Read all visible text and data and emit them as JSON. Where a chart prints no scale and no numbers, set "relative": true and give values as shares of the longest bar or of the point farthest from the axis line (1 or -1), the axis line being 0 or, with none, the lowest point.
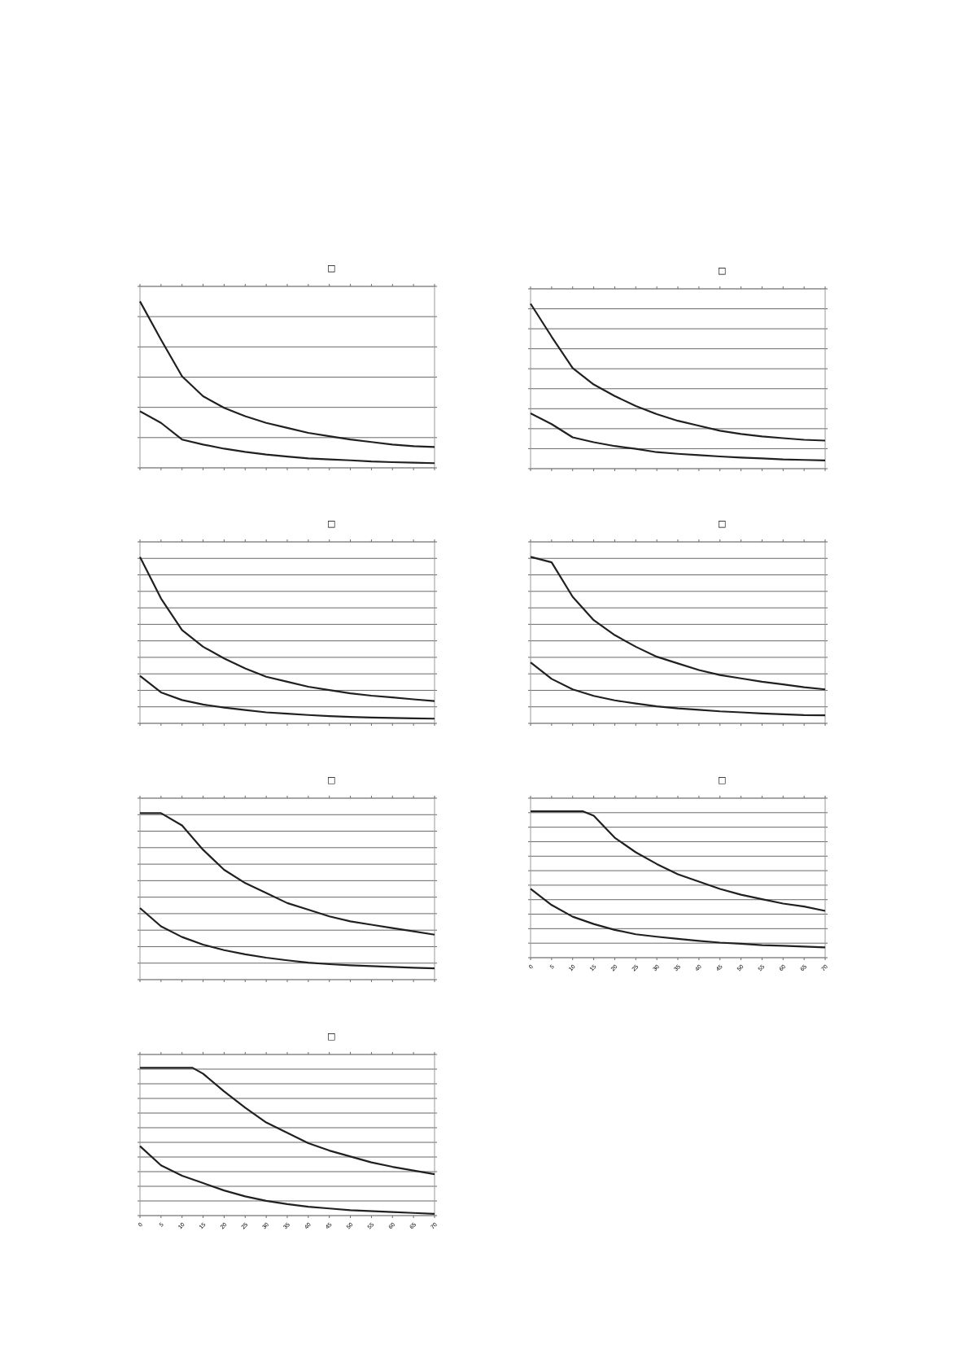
{
  "chart_data": [
    {
      "type": "line",
      "title": "□",
      "relative": true,
      "color": "#231f20",
      "grid": "y",
      "categories": [
        null,
        null,
        null,
        null,
        null,
        null,
        null,
        null,
        null,
        null,
        null,
        null,
        null,
        null,
        null
      ],
      "series": [
        {
          "values": [
            1,
            0.77,
            0.55,
            0.43,
            0.36,
            0.31,
            0.27,
            0.24,
            0.21,
            0.19,
            0.17,
            0.155,
            0.14,
            0.13,
            0.125
          ]
        },
        {
          "values": [
            0.34,
            0.27,
            0.17,
            0.14,
            0.115,
            0.096,
            0.08,
            0.068,
            0.057,
            0.051,
            0.045,
            0.038,
            0.034,
            0.031,
            0.028
          ]
        }
      ]
    },
    {
      "type": "line",
      "title": "□",
      "relative": true,
      "color": "#231f20",
      "grid": "y",
      "categories": [
        null,
        null,
        null,
        null,
        null,
        null,
        null,
        null,
        null,
        null,
        null,
        null,
        null,
        null,
        null
      ],
      "series": [
        {
          "values": [
            1,
            0.8,
            0.61,
            0.51,
            0.44,
            0.38,
            0.33,
            0.29,
            0.26,
            0.23,
            0.21,
            0.195,
            0.185,
            0.175,
            0.17
          ]
        },
        {
          "values": [
            0.335,
            0.27,
            0.19,
            0.16,
            0.137,
            0.12,
            0.1,
            0.09,
            0.082,
            0.074,
            0.067,
            0.062,
            0.056,
            0.053,
            0.05
          ]
        }
      ]
    },
    {
      "type": "line",
      "title": "□",
      "relative": true,
      "color": "#231f20",
      "grid": "y",
      "categories": [
        null,
        null,
        null,
        null,
        null,
        null,
        null,
        null,
        null,
        null,
        null,
        null,
        null,
        null,
        null
      ],
      "series": [
        {
          "values": [
            1,
            0.75,
            0.56,
            0.46,
            0.39,
            0.33,
            0.28,
            0.25,
            0.22,
            0.2,
            0.18,
            0.166,
            0.156,
            0.144,
            0.134
          ]
        },
        {
          "values": [
            0.285,
            0.186,
            0.14,
            0.113,
            0.095,
            0.08,
            0.066,
            0.058,
            0.05,
            0.043,
            0.038,
            0.035,
            0.032,
            0.03,
            0.028
          ]
        }
      ]
    },
    {
      "type": "line",
      "title": "□",
      "relative": true,
      "color": "#231f20",
      "grid": "y",
      "categories": [
        null,
        null,
        null,
        null,
        null,
        null,
        null,
        null,
        null,
        null,
        null,
        null,
        null,
        null,
        null
      ],
      "series": [
        {
          "values": [
            1,
            0.967,
            0.76,
            0.62,
            0.53,
            0.46,
            0.4,
            0.36,
            0.32,
            0.29,
            0.27,
            0.25,
            0.234,
            0.217,
            0.204
          ]
        },
        {
          "values": [
            0.366,
            0.267,
            0.204,
            0.165,
            0.138,
            0.119,
            0.102,
            0.09,
            0.081,
            0.072,
            0.066,
            0.059,
            0.054,
            0.049,
            0.048
          ]
        }
      ]
    },
    {
      "type": "line",
      "title": "□",
      "relative": true,
      "color": "#231f20",
      "grid": "y",
      "categories": [
        null,
        null,
        null,
        null,
        null,
        null,
        null,
        null,
        null,
        null,
        null,
        null,
        null,
        null,
        null
      ],
      "series": [
        {
          "values": [
            1,
            1,
            0.926,
            0.78,
            0.66,
            0.58,
            0.52,
            0.46,
            0.42,
            0.38,
            0.35,
            0.33,
            0.31,
            0.29,
            0.27
          ]
        },
        {
          "values": [
            0.43,
            0.32,
            0.256,
            0.21,
            0.177,
            0.152,
            0.132,
            0.116,
            0.102,
            0.093,
            0.086,
            0.081,
            0.076,
            0.071,
            0.068
          ]
        }
      ]
    },
    {
      "type": "line",
      "title": "□",
      "relative": true,
      "color": "#231f20",
      "xlim": [
        0,
        70
      ],
      "xticks": [
        0,
        5,
        10,
        15,
        20,
        25,
        30,
        35,
        40,
        45,
        50,
        55,
        60,
        65,
        70
      ],
      "tick_labels": "x",
      "grid": "y",
      "series": [
        {
          "x": [
            0,
            5,
            10,
            12.5,
            15,
            20,
            25,
            30,
            35,
            40,
            45,
            50,
            55,
            60,
            65,
            70
          ],
          "values": [
            1,
            1,
            1,
            1,
            0.97,
            0.82,
            0.72,
            0.64,
            0.57,
            0.52,
            0.47,
            0.43,
            0.4,
            0.37,
            0.35,
            0.32
          ]
        },
        {
          "x": [
            0,
            5,
            10,
            15,
            20,
            25,
            30,
            35,
            40,
            45,
            50,
            55,
            60,
            65,
            70
          ],
          "values": [
            0.47,
            0.36,
            0.28,
            0.23,
            0.19,
            0.16,
            0.143,
            0.129,
            0.115,
            0.103,
            0.095,
            0.086,
            0.081,
            0.076,
            0.07
          ]
        }
      ]
    },
    {
      "type": "line",
      "title": "□",
      "relative": true,
      "color": "#231f20",
      "xlim": [
        0,
        70
      ],
      "xticks": [
        0,
        5,
        10,
        15,
        20,
        25,
        30,
        35,
        40,
        45,
        50,
        55,
        60,
        65,
        70
      ],
      "tick_labels": "x",
      "grid": "y",
      "series": [
        {
          "x": [
            0,
            5,
            10,
            12.5,
            15,
            20,
            25,
            30,
            35,
            40,
            45,
            50,
            55,
            60,
            65,
            70
          ],
          "values": [
            1,
            1,
            1,
            1,
            0.96,
            0.84,
            0.73,
            0.63,
            0.56,
            0.49,
            0.44,
            0.4,
            0.36,
            0.33,
            0.305,
            0.28
          ]
        },
        {
          "x": [
            0,
            5,
            10,
            15,
            20,
            25,
            30,
            35,
            40,
            45,
            50,
            55,
            60,
            65,
            70
          ],
          "values": [
            0.47,
            0.34,
            0.27,
            0.22,
            0.17,
            0.13,
            0.1,
            0.078,
            0.06,
            0.048,
            0.036,
            0.03,
            0.024,
            0.018,
            0.012
          ]
        }
      ]
    }
  ]
}
